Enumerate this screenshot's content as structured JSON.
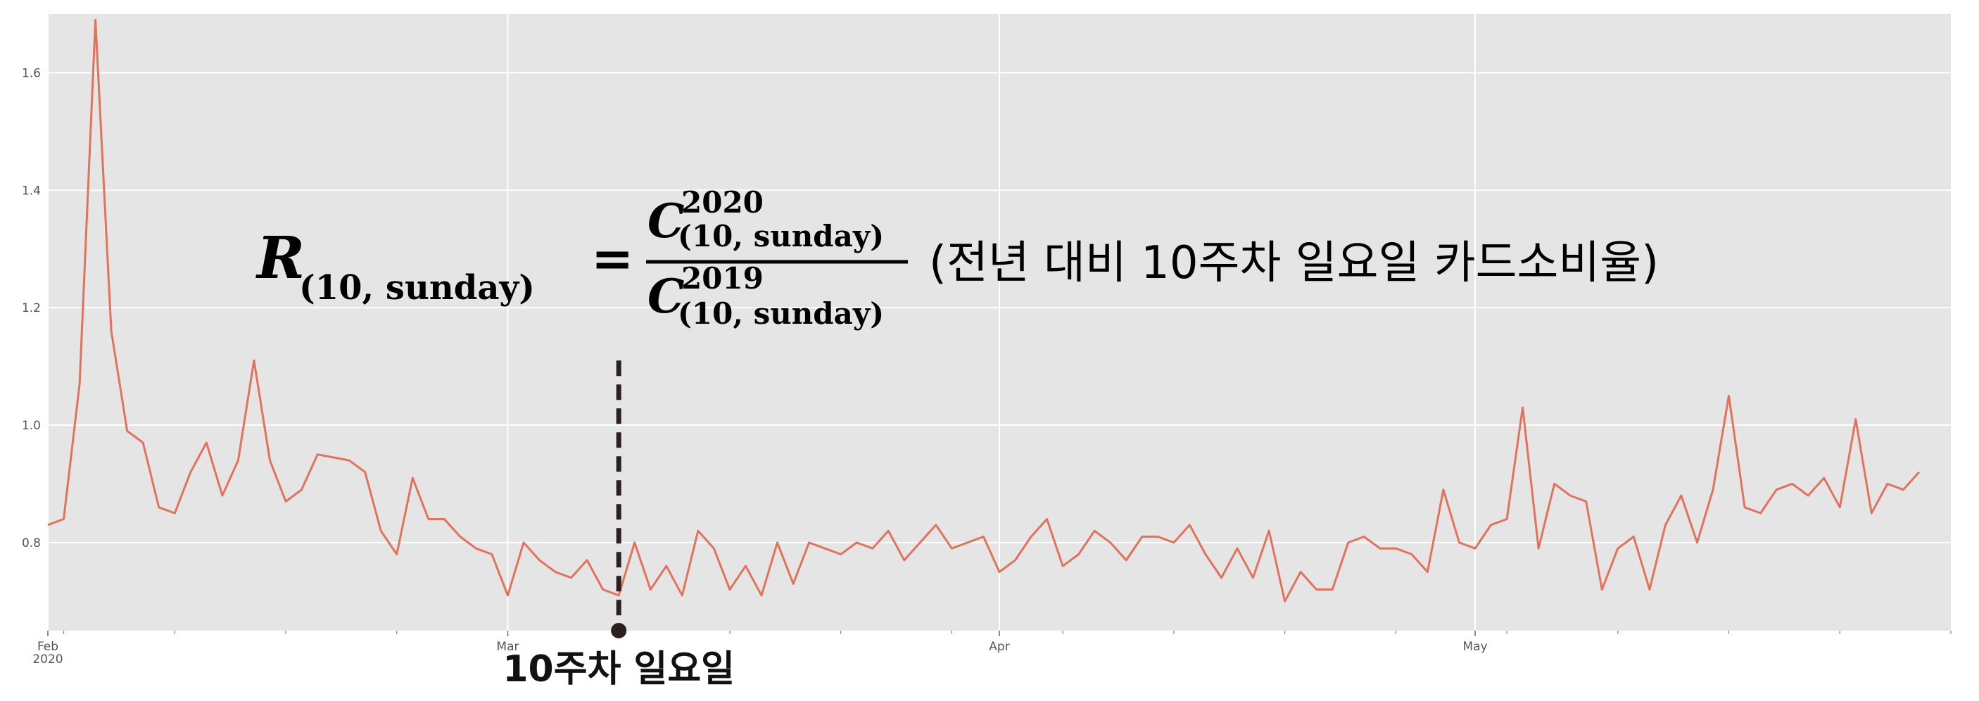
{
  "chart_data": {
    "type": "line",
    "title": "",
    "xlabel": "",
    "ylabel": "",
    "x_range": [
      "2020-02-01",
      "2020-05-31"
    ],
    "ylim": [
      0.65,
      1.7
    ],
    "grid": true,
    "colors": {
      "background": "#e5e5e5",
      "grid": "#ffffff",
      "line": "#e2735a",
      "marker": "#2b2020"
    },
    "x_ticks": [
      {
        "date": "2020-02-01",
        "label": "Feb",
        "sublabel": "2020"
      },
      {
        "date": "2020-03-01",
        "label": "Mar",
        "sublabel": ""
      },
      {
        "date": "2020-04-01",
        "label": "Apr",
        "sublabel": ""
      },
      {
        "date": "2020-05-01",
        "label": "May",
        "sublabel": ""
      }
    ],
    "y_ticks": [
      {
        "value": 0.8,
        "label": "0.8"
      },
      {
        "value": 1.0,
        "label": "1.0"
      },
      {
        "value": 1.2,
        "label": "1.2"
      },
      {
        "value": 1.4,
        "label": "1.4"
      },
      {
        "value": 1.6,
        "label": "1.6"
      }
    ],
    "series": [
      {
        "start_date": "2020-02-01",
        "values": [
          0.83,
          0.84,
          1.07,
          1.69,
          1.16,
          0.99,
          0.97,
          0.86,
          0.85,
          0.92,
          0.97,
          0.88,
          0.94,
          1.11,
          0.94,
          0.87,
          0.89,
          0.95,
          0.945,
          0.94,
          0.92,
          0.82,
          0.78,
          0.91,
          0.84,
          0.84,
          0.81,
          0.79,
          0.78,
          0.71,
          0.8,
          0.77,
          0.75,
          0.74,
          0.77,
          0.72,
          0.71,
          0.8,
          0.72,
          0.76,
          0.71,
          0.82,
          0.79,
          0.72,
          0.76,
          0.71,
          0.8,
          0.73,
          0.8,
          0.79,
          0.78,
          0.8,
          0.79,
          0.82,
          0.77,
          0.8,
          0.83,
          0.79,
          0.8,
          0.81,
          0.75,
          0.77,
          0.81,
          0.84,
          0.76,
          0.78,
          0.82,
          0.8,
          0.77,
          0.81,
          0.81,
          0.8,
          0.83,
          0.78,
          0.74,
          0.79,
          0.74,
          0.82,
          0.7,
          0.75,
          0.72,
          0.72,
          0.8,
          0.81,
          0.79,
          0.79,
          0.78,
          0.75,
          0.89,
          0.8,
          0.79,
          0.83,
          0.84,
          1.03,
          0.79,
          0.9,
          0.88,
          0.87,
          0.72,
          0.79,
          0.81,
          0.72,
          0.83,
          0.88,
          0.8,
          0.89,
          1.05,
          0.86,
          0.85,
          0.89,
          0.9,
          0.88,
          0.91,
          0.86,
          1.01,
          0.85,
          0.9,
          0.89,
          0.92
        ]
      }
    ],
    "annotations": [
      {
        "type": "vline-marker",
        "date": "2020-03-08",
        "y_from": 0.65,
        "y_to": 1.11,
        "label": "10주차 일요일"
      }
    ]
  },
  "formula": {
    "lhs_symbol": "R",
    "lhs_subscript": "(10, sunday)",
    "equals": "=",
    "numerator_symbol": "C",
    "numerator_superscript": "2020",
    "numerator_subscript": "(10, sunday)",
    "denominator_symbol": "C",
    "denominator_superscript": "2019",
    "denominator_subscript": "(10, sunday)",
    "description": "(전년 대비 10주차 일요일 카드소비율)"
  }
}
